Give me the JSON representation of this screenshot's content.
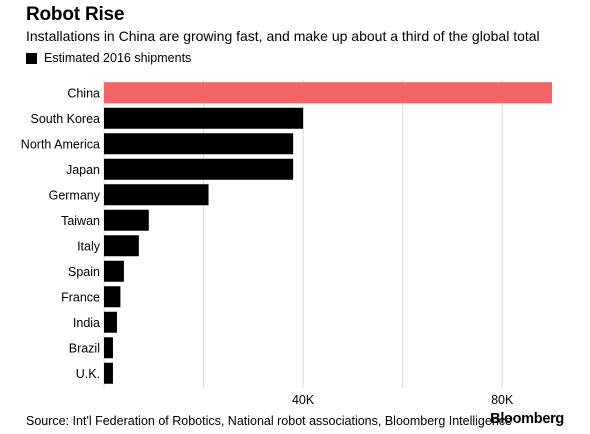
{
  "title": "Robot Rise",
  "subtitle": "Installations in China are growing fast, and make up about a third of the global total",
  "legend_label": "Estimated 2016 shipments",
  "source": "Source: Int'l Federation of Robotics, National robot associations, Bloomberg Intelligence",
  "brand": "Bloomberg",
  "colors": {
    "highlight": "#f26466",
    "bar": "#000000",
    "grid": "#d9d9d9"
  },
  "chart_data": {
    "type": "bar",
    "orientation": "horizontal",
    "categories": [
      "China",
      "South Korea",
      "North America",
      "Japan",
      "Germany",
      "Taiwan",
      "Italy",
      "Spain",
      "France",
      "India",
      "Brazil",
      "U.K."
    ],
    "values": [
      90000,
      40000,
      38000,
      38000,
      21000,
      9000,
      7000,
      4000,
      3300,
      2600,
      1800,
      1800
    ],
    "highlight_category": "China",
    "xlim": [
      0,
      90000
    ],
    "xticks": [
      20000,
      40000,
      60000,
      80000
    ],
    "xtick_labels": [
      "",
      "40K",
      "",
      "80K"
    ],
    "grid": true
  }
}
